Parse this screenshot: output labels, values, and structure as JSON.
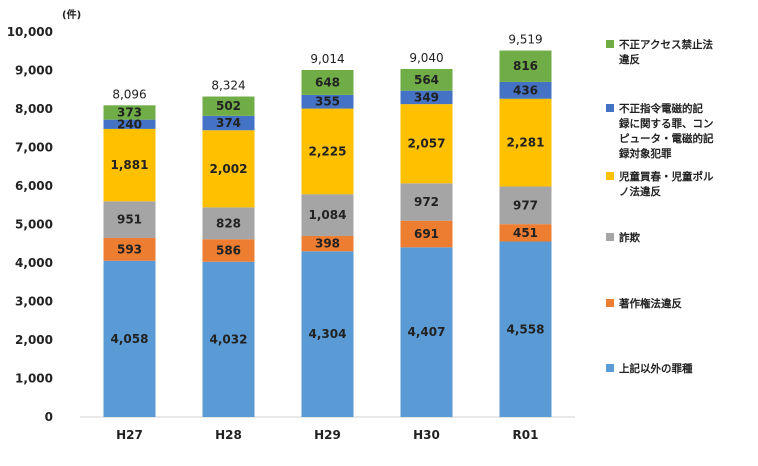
{
  "chart_data": {
    "type": "bar",
    "stacked": true,
    "unit_label": "(件)",
    "categories": [
      "H27",
      "H28",
      "H29",
      "H30",
      "R01"
    ],
    "ylim": [
      0,
      10000
    ],
    "yticks": [
      "0",
      "1,000",
      "2,000",
      "3,000",
      "4,000",
      "5,000",
      "6,000",
      "7,000",
      "8,000",
      "9,000",
      "10,000"
    ],
    "ytick_values": [
      0,
      1000,
      2000,
      3000,
      4000,
      5000,
      6000,
      7000,
      8000,
      9000,
      10000
    ],
    "grid": false,
    "legend_position": "right",
    "totals": [
      "8,096",
      "8,324",
      "9,014",
      "9,040",
      "9,519"
    ],
    "series": [
      {
        "name": "上記以外の罪種",
        "color": "#5b9bd5",
        "values": [
          4058,
          4032,
          4304,
          4407,
          4558
        ],
        "labels": [
          "4,058",
          "4,032",
          "4,304",
          "4,407",
          "4,558"
        ]
      },
      {
        "name": "著作権法違反",
        "color": "#ed7d31",
        "values": [
          593,
          586,
          398,
          691,
          451
        ],
        "labels": [
          "593",
          "586",
          "398",
          "691",
          "451"
        ]
      },
      {
        "name": "詐欺",
        "color": "#a5a5a5",
        "values": [
          951,
          828,
          1084,
          972,
          977
        ],
        "labels": [
          "951",
          "828",
          "1,084",
          "972",
          "977"
        ]
      },
      {
        "name": "児童買春・児童ポルノ法違反",
        "color": "#ffc000",
        "values": [
          1881,
          2002,
          2225,
          2057,
          2281
        ],
        "labels": [
          "1,881",
          "2,002",
          "2,225",
          "2,057",
          "2,281"
        ]
      },
      {
        "name": "不正指令電磁的記録に関する罪、コンピュータ・電磁的記録対象犯罪",
        "color": "#4472c4",
        "values": [
          240,
          374,
          355,
          349,
          436
        ],
        "labels": [
          "240",
          "374",
          "355",
          "349",
          "436"
        ]
      },
      {
        "name": "不正アクセス禁止法違反",
        "color": "#70ad47",
        "values": [
          373,
          502,
          648,
          564,
          816
        ],
        "labels": [
          "373",
          "502",
          "648",
          "564",
          "816"
        ]
      }
    ],
    "legend_lines": [
      [
        "不正アクセス禁止法",
        "違反"
      ],
      [
        "不正指令電磁的記",
        "録に関する罪、コン",
        "ピュータ・電磁的記",
        "録対象犯罪"
      ],
      [
        "児童買春・児童ポル",
        "ノ法違反"
      ],
      [
        "詐欺"
      ],
      [
        "著作権法違反"
      ],
      [
        "上記以外の罪種"
      ]
    ],
    "legend_colors": [
      "#70ad47",
      "#4472c4",
      "#ffc000",
      "#a5a5a5",
      "#ed7d31",
      "#5b9bd5"
    ]
  }
}
